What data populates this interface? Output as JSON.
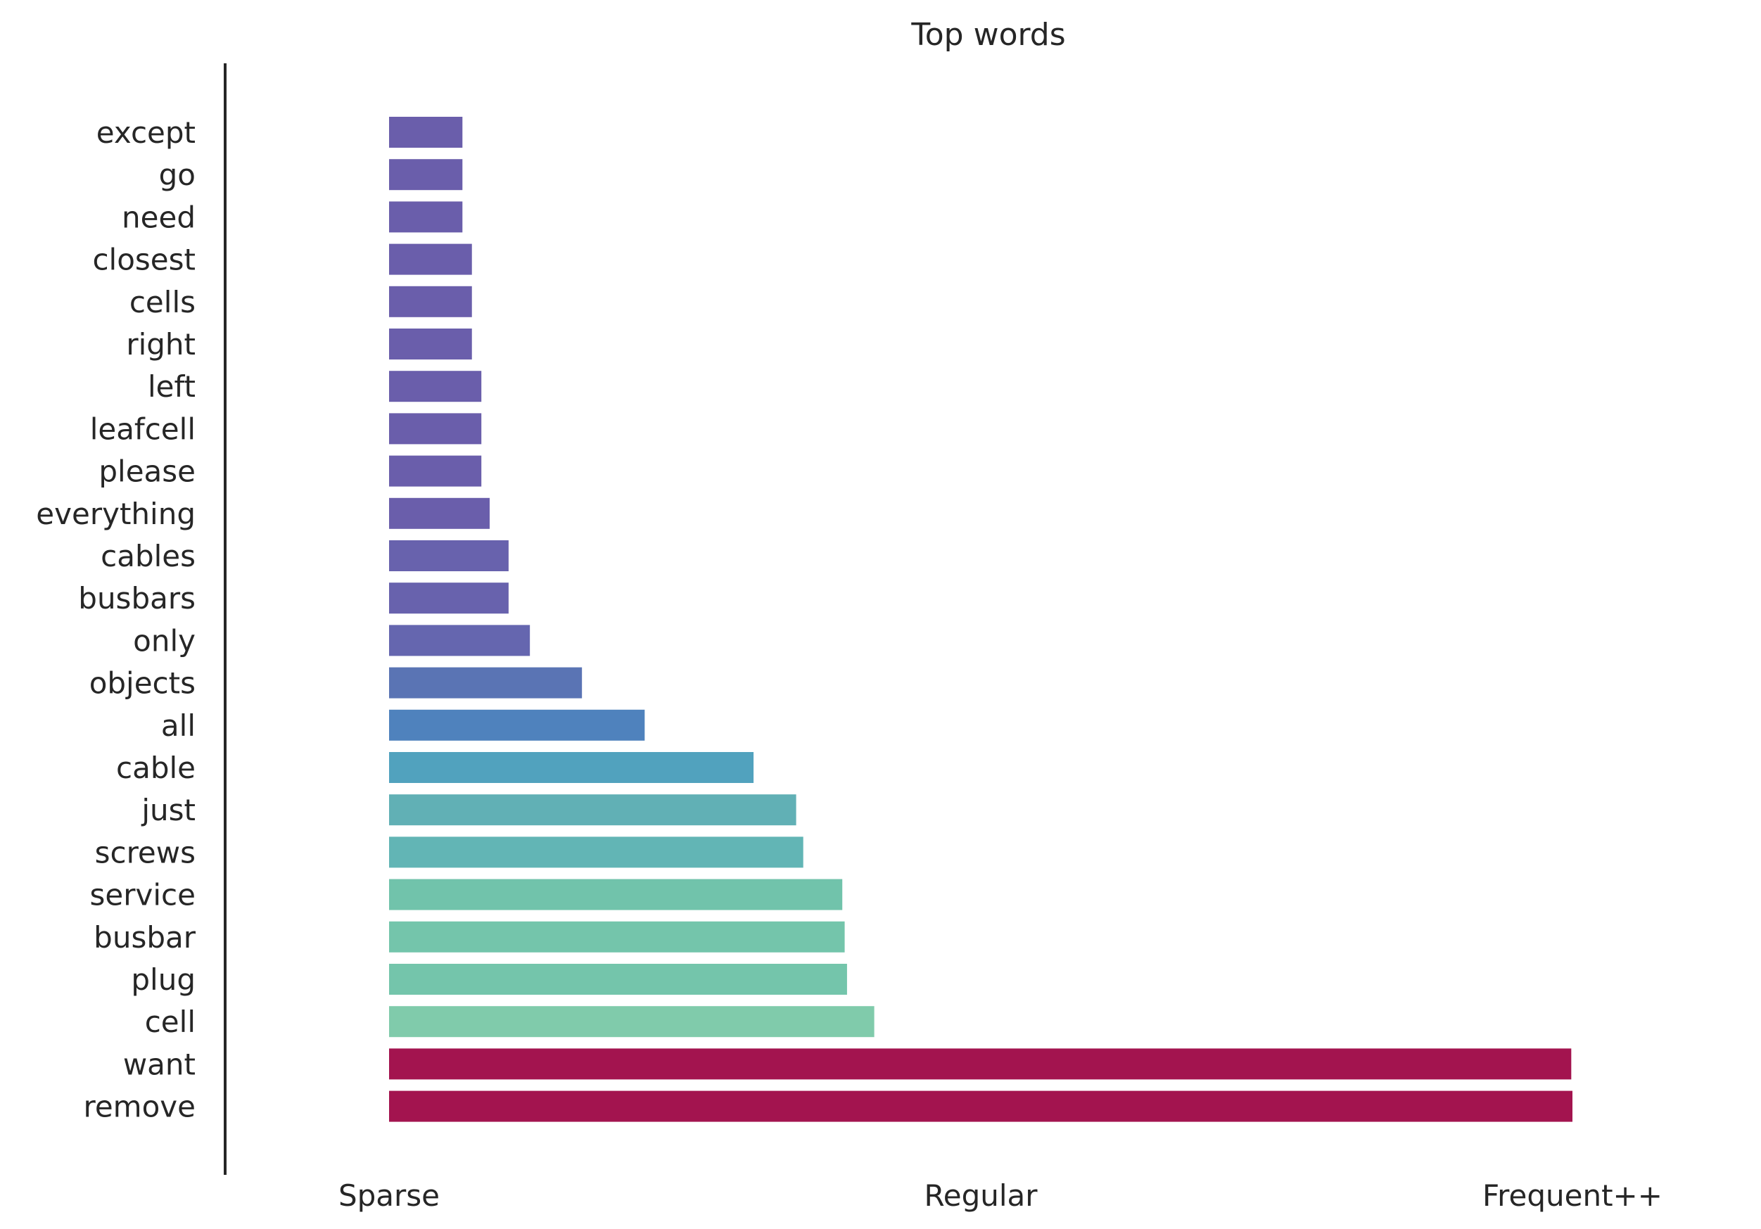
{
  "chart_data": {
    "type": "bar",
    "orientation": "horizontal",
    "title": "Top words",
    "xlabel": "",
    "ylabel": "",
    "categories": [
      "except",
      "go",
      "need",
      "closest",
      "cells",
      "right",
      "left",
      "leafcell",
      "please",
      "everything",
      "cables",
      "busbars",
      "only",
      "objects",
      "all",
      "cable",
      "just",
      "screws",
      "service",
      "busbar",
      "plug",
      "cell",
      "want",
      "remove"
    ],
    "values": [
      0.062,
      0.062,
      0.062,
      0.07,
      0.07,
      0.07,
      0.078,
      0.078,
      0.078,
      0.085,
      0.101,
      0.101,
      0.119,
      0.163,
      0.216,
      0.308,
      0.344,
      0.35,
      0.383,
      0.385,
      0.387,
      0.41,
      0.999,
      1.0
    ],
    "colors": [
      "#6a5eab",
      "#6a5eab",
      "#6a5eab",
      "#6a5eab",
      "#6a5eab",
      "#6a5eab",
      "#6a5eab",
      "#6a5eab",
      "#6a5eab",
      "#6a5eab",
      "#6862ad",
      "#6862ad",
      "#6566af",
      "#5a74b4",
      "#4f82bd",
      "#51a2be",
      "#61b0b5",
      "#62b5b5",
      "#71c3ab",
      "#74c5ab",
      "#74c5ab",
      "#80cbab",
      "#a3144f",
      "#a3144f"
    ],
    "xlim": [
      0,
      1
    ],
    "x_ticks": [
      {
        "value": 0,
        "label": "Sparse"
      },
      {
        "value": 0.5,
        "label": "Regular"
      },
      {
        "value": 1,
        "label": "Frequent++"
      }
    ],
    "grid": false,
    "legend": "none"
  }
}
